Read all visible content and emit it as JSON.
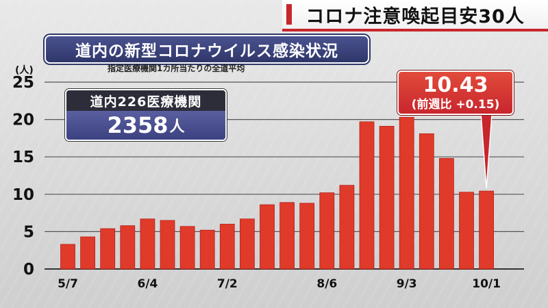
{
  "banner": {
    "text": "コロナ注意喚起目安30人"
  },
  "header": {
    "title": "道内の新型コロナウイルス感染状況",
    "subtitle": "指定医療機関1カ所当たりの全道平均",
    "unit": "(人)"
  },
  "info_box": {
    "label": "道内226医療機関",
    "value": "2358",
    "value_unit": "人"
  },
  "callout": {
    "value": "10.43",
    "note": "(前週比 +0.15)"
  },
  "colors": {
    "bar": "#e03a2a",
    "bar_edge": "#b5221a",
    "accent": "#c8262d",
    "navy": "#3c4180"
  },
  "chart_data": {
    "type": "bar",
    "title": "道内の新型コロナウイルス感染状況",
    "subtitle": "指定医療機関1カ所当たりの全道平均",
    "ylabel": "(人)",
    "xlabel": "",
    "ylim": [
      0,
      25
    ],
    "yticks": [
      0,
      5,
      10,
      15,
      20,
      25
    ],
    "grid": true,
    "x_tick_labels": [
      {
        "index": 0,
        "label": "5/7"
      },
      {
        "index": 4,
        "label": "6/4"
      },
      {
        "index": 8,
        "label": "7/2"
      },
      {
        "index": 13,
        "label": "8/6"
      },
      {
        "index": 17,
        "label": "9/3"
      },
      {
        "index": 21,
        "label": "10/1"
      }
    ],
    "values": [
      3.3,
      4.3,
      5.4,
      5.8,
      6.7,
      6.5,
      5.7,
      5.2,
      6.0,
      6.7,
      8.6,
      8.9,
      8.8,
      10.2,
      11.2,
      19.7,
      19.1,
      20.3,
      18.1,
      14.8,
      10.28,
      10.43
    ],
    "annotation": {
      "index": 21,
      "value": "10.43",
      "note": "(前週比 +0.15)"
    }
  }
}
